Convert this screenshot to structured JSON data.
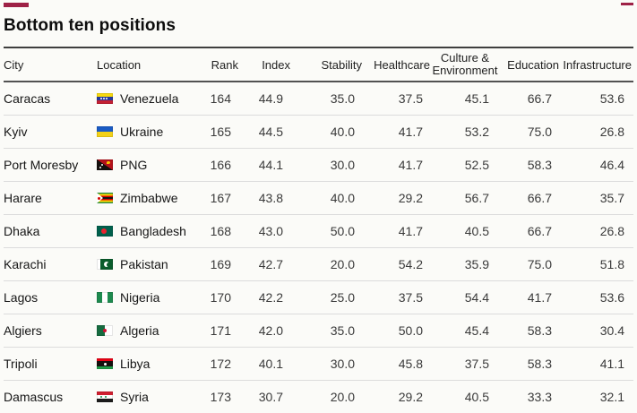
{
  "accent_color": "#9e2146",
  "title": "Bottom ten positions",
  "chart_data": {
    "type": "table",
    "title": "Bottom ten positions",
    "columns": [
      "City",
      "Location",
      "Rank",
      "Index",
      "Stability",
      "Healthcare",
      "Culture &\nEnvironment",
      "Education",
      "Infrastructure"
    ],
    "column_keys": [
      "city",
      "location",
      "rank",
      "index",
      "stability",
      "healthcare",
      "culture-environment",
      "education",
      "infrastructure"
    ],
    "rows": [
      {
        "city": "Caracas",
        "country": "Venezuela",
        "flag": "ve",
        "rank": "164",
        "index": "44.9",
        "stability": "35.0",
        "healthcare": "37.5",
        "culture_environment": "45.1",
        "education": "66.7",
        "infrastructure": "53.6"
      },
      {
        "city": "Kyiv",
        "country": "Ukraine",
        "flag": "ua",
        "rank": "165",
        "index": "44.5",
        "stability": "40.0",
        "healthcare": "41.7",
        "culture_environment": "53.2",
        "education": "75.0",
        "infrastructure": "26.8"
      },
      {
        "city": "Port Moresby",
        "country": "PNG",
        "flag": "pg",
        "rank": "166",
        "index": "44.1",
        "stability": "30.0",
        "healthcare": "41.7",
        "culture_environment": "52.5",
        "education": "58.3",
        "infrastructure": "46.4"
      },
      {
        "city": "Harare",
        "country": "Zimbabwe",
        "flag": "zw",
        "rank": "167",
        "index": "43.8",
        "stability": "40.0",
        "healthcare": "29.2",
        "culture_environment": "56.7",
        "education": "66.7",
        "infrastructure": "35.7"
      },
      {
        "city": "Dhaka",
        "country": "Bangladesh",
        "flag": "bd",
        "rank": "168",
        "index": "43.0",
        "stability": "50.0",
        "healthcare": "41.7",
        "culture_environment": "40.5",
        "education": "66.7",
        "infrastructure": "26.8"
      },
      {
        "city": "Karachi",
        "country": "Pakistan",
        "flag": "pk",
        "rank": "169",
        "index": "42.7",
        "stability": "20.0",
        "healthcare": "54.2",
        "culture_environment": "35.9",
        "education": "75.0",
        "infrastructure": "51.8"
      },
      {
        "city": "Lagos",
        "country": "Nigeria",
        "flag": "ng",
        "rank": "170",
        "index": "42.2",
        "stability": "25.0",
        "healthcare": "37.5",
        "culture_environment": "54.4",
        "education": "41.7",
        "infrastructure": "53.6"
      },
      {
        "city": "Algiers",
        "country": "Algeria",
        "flag": "dz",
        "rank": "171",
        "index": "42.0",
        "stability": "35.0",
        "healthcare": "50.0",
        "culture_environment": "45.4",
        "education": "58.3",
        "infrastructure": "30.4"
      },
      {
        "city": "Tripoli",
        "country": "Libya",
        "flag": "ly",
        "rank": "172",
        "index": "40.1",
        "stability": "30.0",
        "healthcare": "45.8",
        "culture_environment": "37.5",
        "education": "58.3",
        "infrastructure": "41.1"
      },
      {
        "city": "Damascus",
        "country": "Syria",
        "flag": "sy",
        "rank": "173",
        "index": "30.7",
        "stability": "20.0",
        "healthcare": "29.2",
        "culture_environment": "40.5",
        "education": "33.3",
        "infrastructure": "32.1"
      }
    ]
  }
}
